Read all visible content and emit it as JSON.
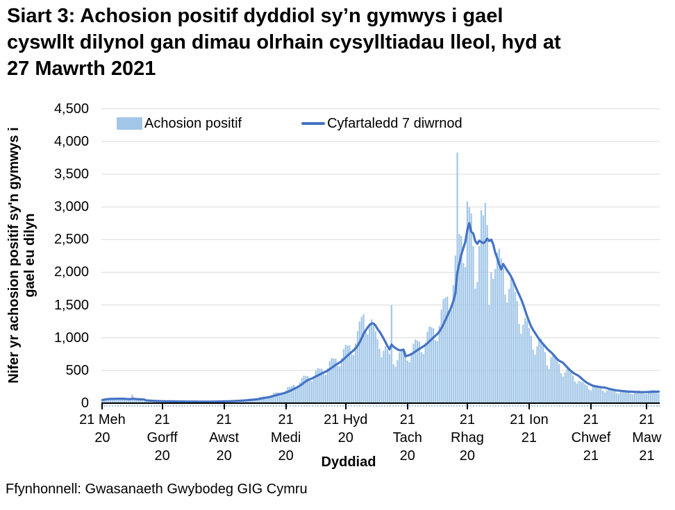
{
  "title_lines": [
    "Siart 3: Achosion positif dyddiol sy’n gymwys i gael",
    "cyswllt dilynol gan dimau olrhain cysylltiadau lleol, hyd at",
    "27 Mawrth 2021"
  ],
  "legend": {
    "bar_label": "Achosion positif",
    "line_label": "Cyfartaledd 7 diwrnod"
  },
  "axis": {
    "x_title": "Dyddiad"
  },
  "footer": "Ffynhonnell: Gwasanaeth Gwybodeg GIG Cymru",
  "colors": {
    "bar": "#A3C7E8",
    "line": "#4472C4",
    "grid": "#D9D9D9",
    "axis": "#000000",
    "text": "#000000"
  },
  "chart_data": {
    "type": "bar",
    "title": "Siart 3: Achosion positif dyddiol sy’n gymwys i gael cyswllt dilynol gan dimau olrhain cysylltiadau lleol, hyd at 27 Mawrth 2021",
    "xlabel": "Dyddiad",
    "ylabel": "Nifer yr achosion positif sy'n gymwys i gael eu dilyn",
    "ylabel_lines": [
      "Nifer yr achosion positif sy'n gymwys i",
      "gael eu dilyn"
    ],
    "ylim": [
      0,
      4500
    ],
    "grid": true,
    "legend_position": "top-left-inside",
    "x_range_label": {
      "from": "21 Meh 20",
      "to": "27 Mawrth 2021"
    },
    "y_ticks": [
      {
        "value": 0,
        "label": "0"
      },
      {
        "value": 500,
        "label": "500"
      },
      {
        "value": 1000,
        "label": "1,000"
      },
      {
        "value": 1500,
        "label": "1,500"
      },
      {
        "value": 2000,
        "label": "2,000"
      },
      {
        "value": 2500,
        "label": "2,500"
      },
      {
        "value": 3000,
        "label": "3,000"
      },
      {
        "value": 3500,
        "label": "3,500"
      },
      {
        "value": 4000,
        "label": "4,000"
      },
      {
        "value": 4500,
        "label": "4,500"
      }
    ],
    "x_ticks": [
      {
        "day": 0,
        "lines": [
          "21 Meh",
          "20"
        ]
      },
      {
        "day": 30,
        "lines": [
          "21",
          "Gorff",
          "20"
        ]
      },
      {
        "day": 61,
        "lines": [
          "21",
          "Awst",
          "20"
        ]
      },
      {
        "day": 92,
        "lines": [
          "21",
          "Medi",
          "20"
        ]
      },
      {
        "day": 122,
        "lines": [
          "21 Hyd",
          "20"
        ]
      },
      {
        "day": 153,
        "lines": [
          "21",
          "Tach",
          "20"
        ]
      },
      {
        "day": 183,
        "lines": [
          "21",
          "Rhag",
          "20"
        ]
      },
      {
        "day": 214,
        "lines": [
          "21 Ion",
          "21"
        ]
      },
      {
        "day": 245,
        "lines": [
          "21",
          "Chwef",
          "21"
        ]
      },
      {
        "day": 273,
        "lines": [
          "21",
          "Maw",
          "21"
        ]
      }
    ],
    "series": [
      {
        "name": "Achosion positif",
        "type": "bar",
        "values": [
          48,
          59,
          70,
          75,
          74,
          72,
          60,
          58,
          65,
          72,
          72,
          65,
          59,
          45,
          40,
          130,
          51,
          52,
          47,
          43,
          34,
          30,
          35,
          41,
          38,
          35,
          27,
          25,
          24,
          28,
          33,
          31,
          29,
          28,
          23,
          21,
          24,
          29,
          28,
          26,
          26,
          21,
          19,
          23,
          27,
          26,
          25,
          24,
          20,
          18,
          22,
          27,
          26,
          26,
          24,
          22,
          21,
          26,
          32,
          31,
          31,
          29,
          26,
          26,
          32,
          41,
          41,
          41,
          40,
          37,
          36,
          46,
          60,
          61,
          62,
          60,
          56,
          56,
          73,
          97,
          100,
          104,
          101,
          96,
          96,
          123,
          159,
          162,
          165,
          158,
          149,
          148,
          189,
          244,
          249,
          264,
          280,
          249,
          256,
          318,
          385,
          420,
          418,
          413,
          346,
          336,
          413,
          495,
          535,
          528,
          525,
          442,
          432,
          532,
          638,
          690,
          682,
          679,
          572,
          560,
          689,
          825,
          891,
          880,
          882,
          748,
          736,
          912,
          1100,
          1250,
          1320,
          1360,
          1100,
          1050,
          1180,
          1280,
          1230,
          1100,
          980,
          830,
          700,
          800,
          870,
          820,
          750,
          1500,
          595,
          556,
          656,
          778,
          831,
          814,
          791,
          652,
          624,
          763,
          908,
          975,
          957,
          938,
          779,
          752,
          919,
          1092,
          1173,
          1163,
          1148,
          961,
          950,
          1181,
          1430,
          1590,
          1613,
          1628,
          1417,
          1427,
          1805,
          2255,
          3830,
          2585,
          2555,
          2139,
          2080,
          3080,
          2992,
          2900,
          2400,
          1750,
          1850,
          2400,
          2950,
          2870,
          3060,
          2720,
          1500,
          2000,
          1900,
          2050,
          2300,
          2360,
          2210,
          2070,
          1660,
          1540,
          1750,
          1950,
          1900,
          1700,
          1560,
          1210,
          1060,
          1200,
          1300,
          1260,
          1150,
          1030,
          820,
          740,
          870,
          980,
          985,
          905,
          780,
          580,
          520,
          700,
          750,
          740,
          660,
          600,
          460,
          410,
          470,
          520,
          510,
          470,
          420,
          330,
          300,
          340,
          330,
          320,
          290,
          270,
          215,
          190,
          250,
          280,
          275,
          260,
          240,
          190,
          165,
          195,
          215,
          225,
          210,
          195,
          155,
          145,
          170,
          195,
          200,
          190,
          180,
          145,
          135,
          160,
          185,
          195,
          185,
          180,
          145,
          140,
          165,
          195,
          205,
          195,
          185,
          150
        ]
      },
      {
        "name": "Cyfartaledd 7 diwrnod",
        "type": "line",
        "derived_from": "7-day trailing average of the bar series"
      }
    ]
  }
}
